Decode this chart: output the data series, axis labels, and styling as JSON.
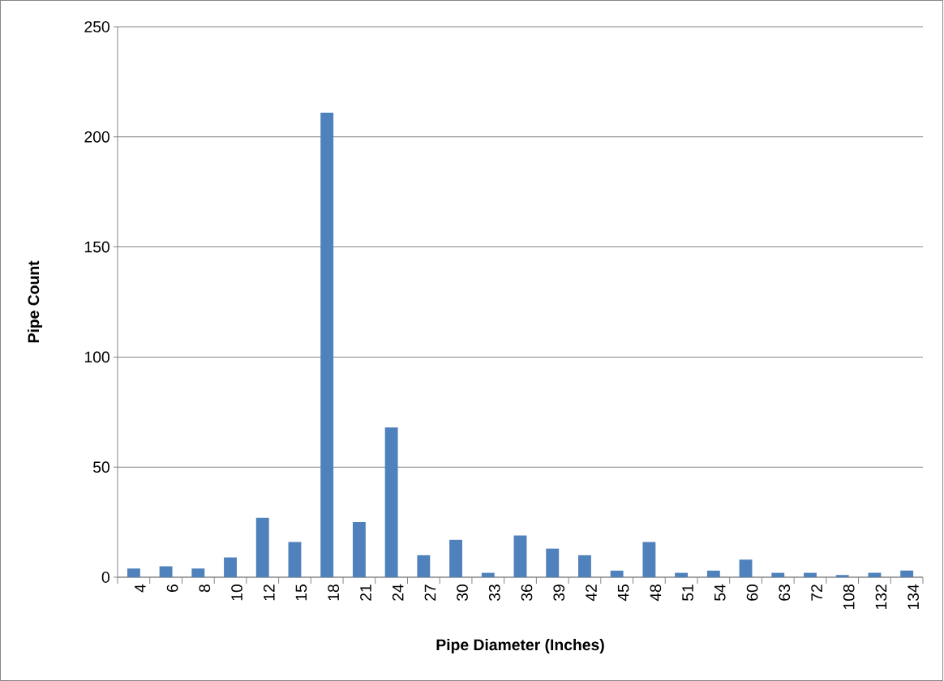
{
  "chart_data": {
    "type": "bar",
    "xlabel": "Pipe Diameter (Inches)",
    "ylabel": "Pipe Count",
    "categories": [
      "4",
      "6",
      "8",
      "10",
      "12",
      "15",
      "18",
      "21",
      "24",
      "27",
      "30",
      "33",
      "36",
      "39",
      "42",
      "45",
      "48",
      "51",
      "54",
      "60",
      "63",
      "72",
      "108",
      "132",
      "134"
    ],
    "values": [
      4,
      5,
      4,
      9,
      27,
      16,
      211,
      25,
      68,
      10,
      17,
      2,
      19,
      13,
      10,
      3,
      16,
      2,
      3,
      8,
      2,
      2,
      1,
      2,
      3
    ],
    "color": "#4f81bd",
    "ylim": [
      0,
      250
    ],
    "yticks": [
      0,
      50,
      100,
      150,
      200,
      250
    ],
    "grid": "y"
  }
}
